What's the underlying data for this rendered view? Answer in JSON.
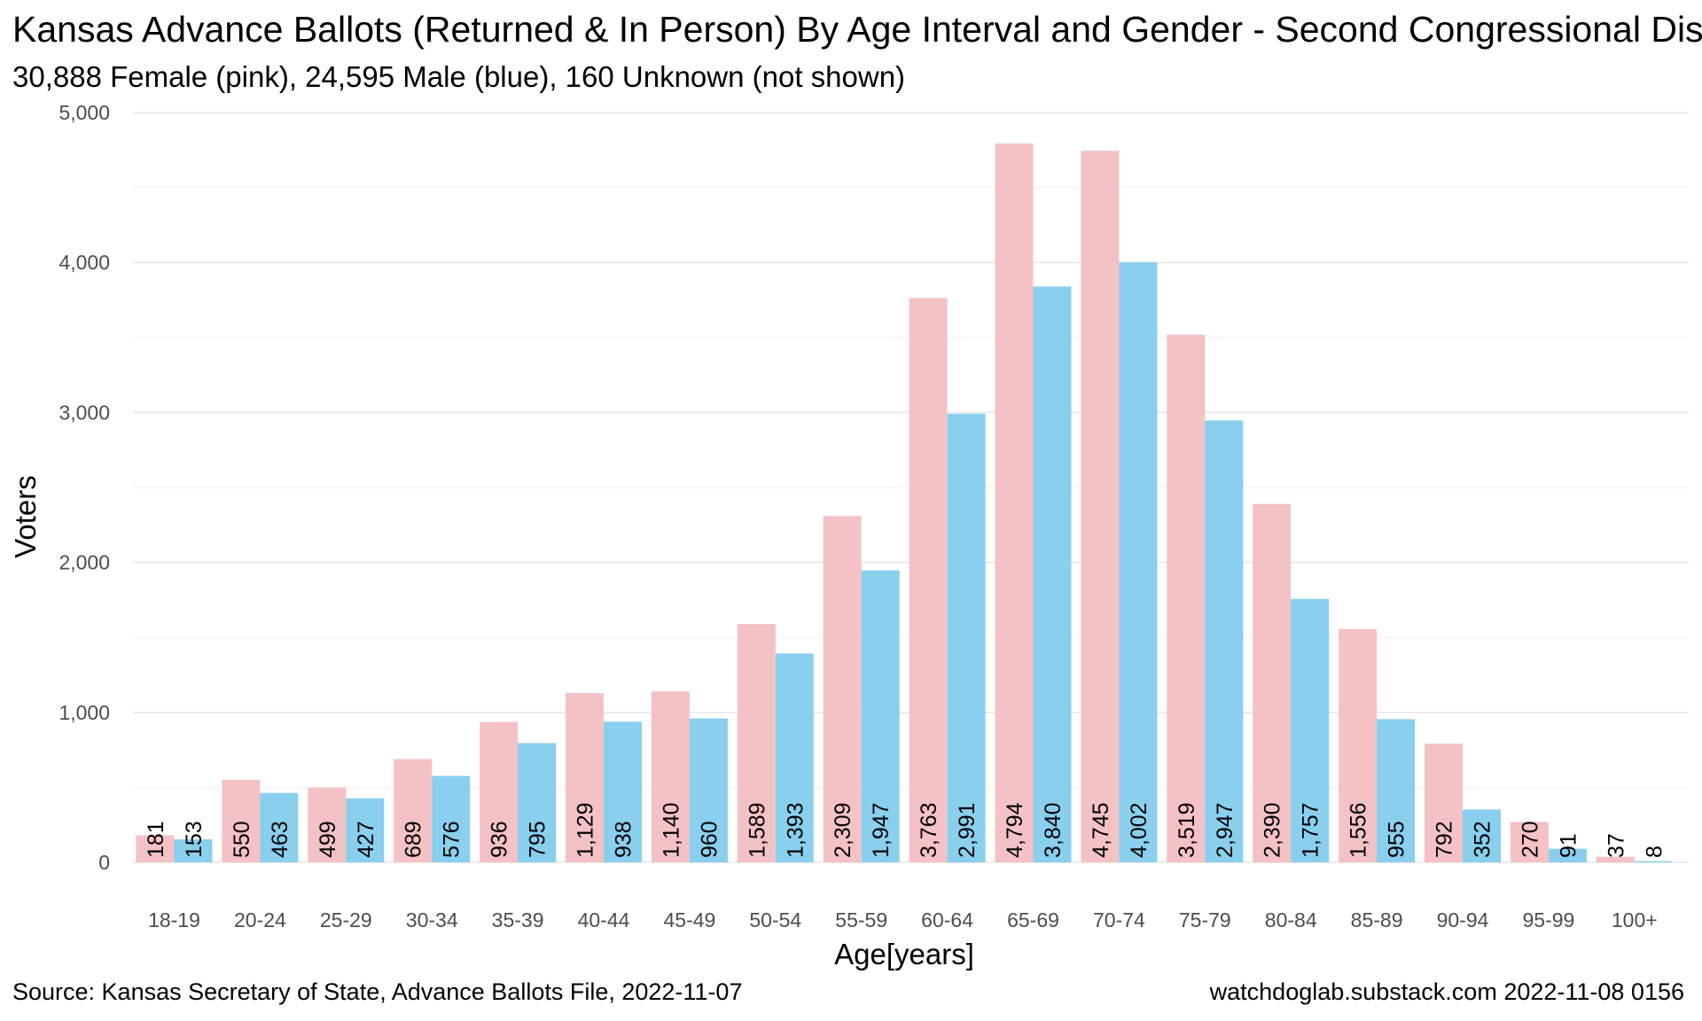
{
  "header": {
    "title": "Kansas Advance Ballots (Returned & In Person) By Age Interval and Gender - Second Congressional District",
    "subtitle": "30,888 Female (pink),  24,595 Male (blue),  160 Unknown (not shown)"
  },
  "footer": {
    "source": "Source:  Kansas Secretary of State, Advance Ballots File,  2022-11-07",
    "credit": "watchdoglab.substack.com 2022-11-08 0156"
  },
  "chart_data": {
    "type": "bar",
    "xlabel": "Age[years]",
    "ylabel": "Voters",
    "ylim": [
      0,
      5000
    ],
    "yticks": [
      0,
      1000,
      2000,
      3000,
      4000,
      5000
    ],
    "ytick_labels": [
      "0",
      "1,000",
      "2,000",
      "3,000",
      "4,000",
      "5,000"
    ],
    "grid": true,
    "categories": [
      "18-19",
      "20-24",
      "25-29",
      "30-34",
      "35-39",
      "40-44",
      "45-49",
      "50-54",
      "55-59",
      "60-64",
      "65-69",
      "70-74",
      "75-79",
      "80-84",
      "85-89",
      "90-94",
      "95-99",
      "100+"
    ],
    "series": [
      {
        "name": "Female",
        "color": "#f4c2c4",
        "values": [
          181,
          550,
          499,
          689,
          936,
          1129,
          1140,
          1589,
          2309,
          3763,
          4794,
          4745,
          3519,
          2390,
          1556,
          792,
          270,
          37
        ],
        "labels": [
          "181",
          "550",
          "499",
          "689",
          "936",
          "1,129",
          "1,140",
          "1,589",
          "2,309",
          "3,763",
          "4,794",
          "4,745",
          "3,519",
          "2,390",
          "1,556",
          "792",
          "270",
          "37"
        ]
      },
      {
        "name": "Male",
        "color": "#89cfee",
        "values": [
          153,
          463,
          427,
          576,
          795,
          938,
          960,
          1393,
          1947,
          2991,
          3840,
          4002,
          2947,
          1757,
          955,
          352,
          91,
          8
        ],
        "labels": [
          "153",
          "463",
          "427",
          "576",
          "795",
          "938",
          "960",
          "1,393",
          "1,947",
          "2,991",
          "3,840",
          "4,002",
          "2,947",
          "1,757",
          "955",
          "352",
          "91",
          "8"
        ]
      }
    ]
  }
}
